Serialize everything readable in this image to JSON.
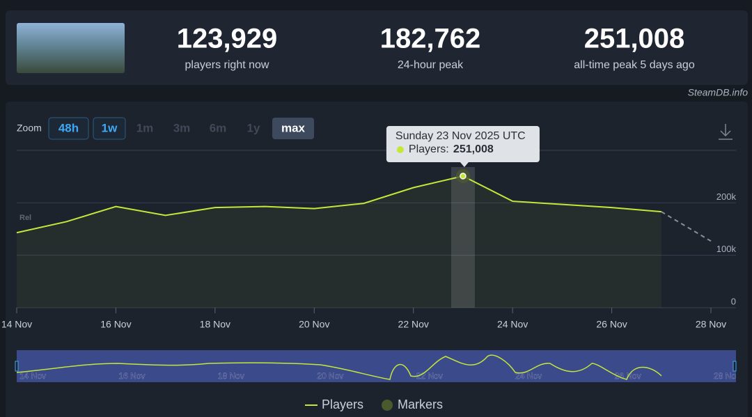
{
  "stats": [
    {
      "value": "123,929",
      "label": "players right now"
    },
    {
      "value": "182,762",
      "label": "24-hour peak"
    },
    {
      "value": "251,008",
      "label": "all-time peak 5 days ago"
    }
  ],
  "watermark": "SteamDB.info",
  "chart_data": {
    "type": "line",
    "zoom_label": "Zoom",
    "zoom_buttons": [
      "48h",
      "1w",
      "1m",
      "3m",
      "6m",
      "1y",
      "max"
    ],
    "rel_label": "Rel",
    "x": [
      "2025-11-14",
      "2025-11-15",
      "2025-11-16",
      "2025-11-17",
      "2025-11-18",
      "2025-11-19",
      "2025-11-20",
      "2025-11-21",
      "2025-11-22",
      "2025-11-23",
      "2025-11-24",
      "2025-11-25",
      "2025-11-26",
      "2025-11-27",
      "2025-11-28"
    ],
    "series": [
      {
        "name": "Players",
        "color": "#c4e83a",
        "values": [
          143000,
          164000,
          193000,
          176000,
          191000,
          193000,
          189000,
          199000,
          229000,
          251008,
          203000,
          197000,
          191000,
          183000,
          null
        ],
        "value_labels": [
          null,
          null,
          null,
          null,
          null,
          null,
          null,
          null,
          null,
          "251,008",
          null,
          null,
          null,
          null,
          null
        ]
      },
      {
        "color": "#8a8f96",
        "dashed": true,
        "values": [
          null,
          null,
          null,
          null,
          null,
          null,
          null,
          null,
          null,
          null,
          null,
          null,
          null,
          183000,
          127000
        ]
      }
    ],
    "markers": {
      "name": "Markers",
      "color": "#4b5a2c"
    },
    "tooltip": {
      "title": "Sunday 23 Nov 2025 UTC",
      "label": "Players:"
    },
    "xlim": [
      "2025-11-14",
      "2025-11-28"
    ],
    "xticks": [
      {
        "value": "2025-11-14",
        "label": "14 Nov"
      },
      {
        "value": "2025-11-16",
        "label": "16 Nov"
      },
      {
        "value": "2025-11-18",
        "label": "18 Nov"
      },
      {
        "value": "2025-11-20",
        "label": "20 Nov"
      },
      {
        "value": "2025-11-22",
        "label": "22 Nov"
      },
      {
        "value": "2025-11-24",
        "label": "24 Nov"
      },
      {
        "value": "2025-11-26",
        "label": "26 Nov"
      },
      {
        "value": "2025-11-28",
        "label": "28 Nov"
      }
    ],
    "ylim": [
      0,
      300000
    ],
    "yticks": [
      0,
      {
        "value": 100000,
        "label": "100k"
      },
      {
        "value": 200000,
        "label": "200k"
      },
      {
        "value": 300000,
        "label": ""
      }
    ],
    "grid": true
  }
}
